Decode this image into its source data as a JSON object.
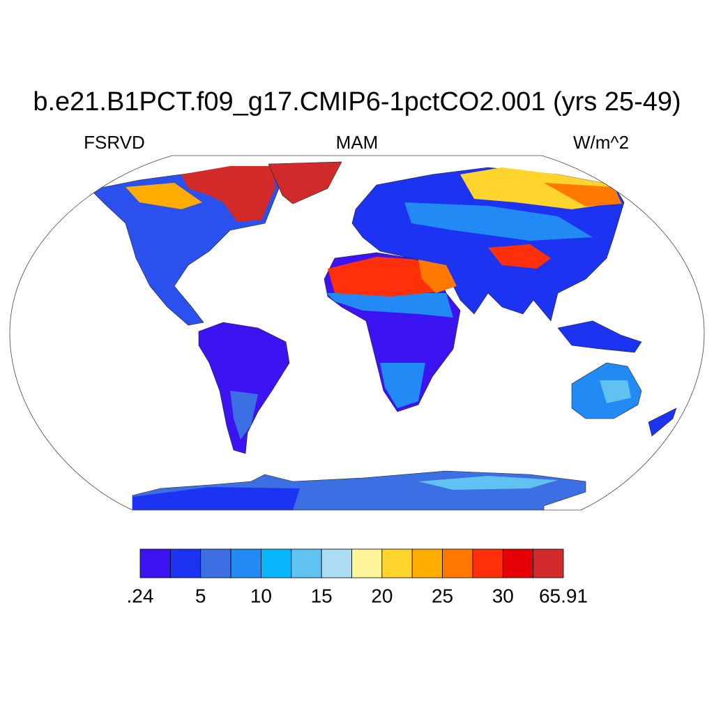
{
  "title": "b.e21.B1PCT.f09_g17.CMIP6-1pctCO2.001 (yrs 25-49)",
  "left_string": "FSRVD",
  "center_string": "MAM",
  "right_string": "W/m^2",
  "colorbar": {
    "colors": [
      "#3c14f2",
      "#1c34f2",
      "#3c6ee4",
      "#228af4",
      "#08b4fa",
      "#60c2f0",
      "#acdcf4",
      "#fff59a",
      "#ffd42c",
      "#ffac00",
      "#ff7800",
      "#ff300a",
      "#e40006",
      "#d22a2a"
    ],
    "ticks": [
      {
        "value": 0.24,
        "label": ".24"
      },
      5,
      10,
      15,
      20,
      25,
      30,
      65.91
    ]
  }
}
